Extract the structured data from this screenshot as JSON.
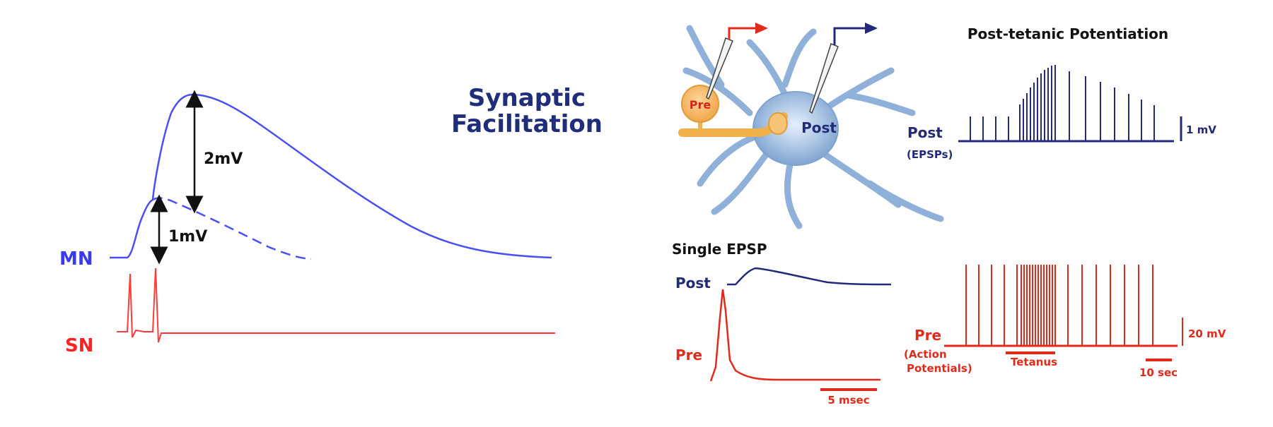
{
  "facilitation": {
    "title_line1": "Synaptic",
    "title_line2": "Facilitation",
    "mn_label": "MN",
    "sn_label": "SN",
    "big_arrow_label": "2mV",
    "small_arrow_label": "1mV"
  },
  "neuron": {
    "pre_label": "Pre",
    "post_label": "Post"
  },
  "ptp": {
    "title": "Post-tetanic Potentiation",
    "post_label": "Post",
    "post_sub": "(EPSPs)",
    "post_scale": "1 mV",
    "pre_label": "Pre",
    "pre_sub1": "(Action",
    "pre_sub2": "Potentials)",
    "tetanus_label": "Tetanus",
    "pre_scale": "20 mV",
    "time_scale": "10 sec"
  },
  "single_epsp": {
    "title": "Single EPSP",
    "post_label": "Post",
    "pre_label": "Pre",
    "time_scale": "5 msec"
  },
  "colors": {
    "blue_trace": "#4a50f0",
    "red_trace": "#ff3b3b",
    "navy": "#232a78",
    "red_dark": "#e32a1a",
    "neuron_fill": "#a9c4e3",
    "axon": "#f0b04a"
  }
}
